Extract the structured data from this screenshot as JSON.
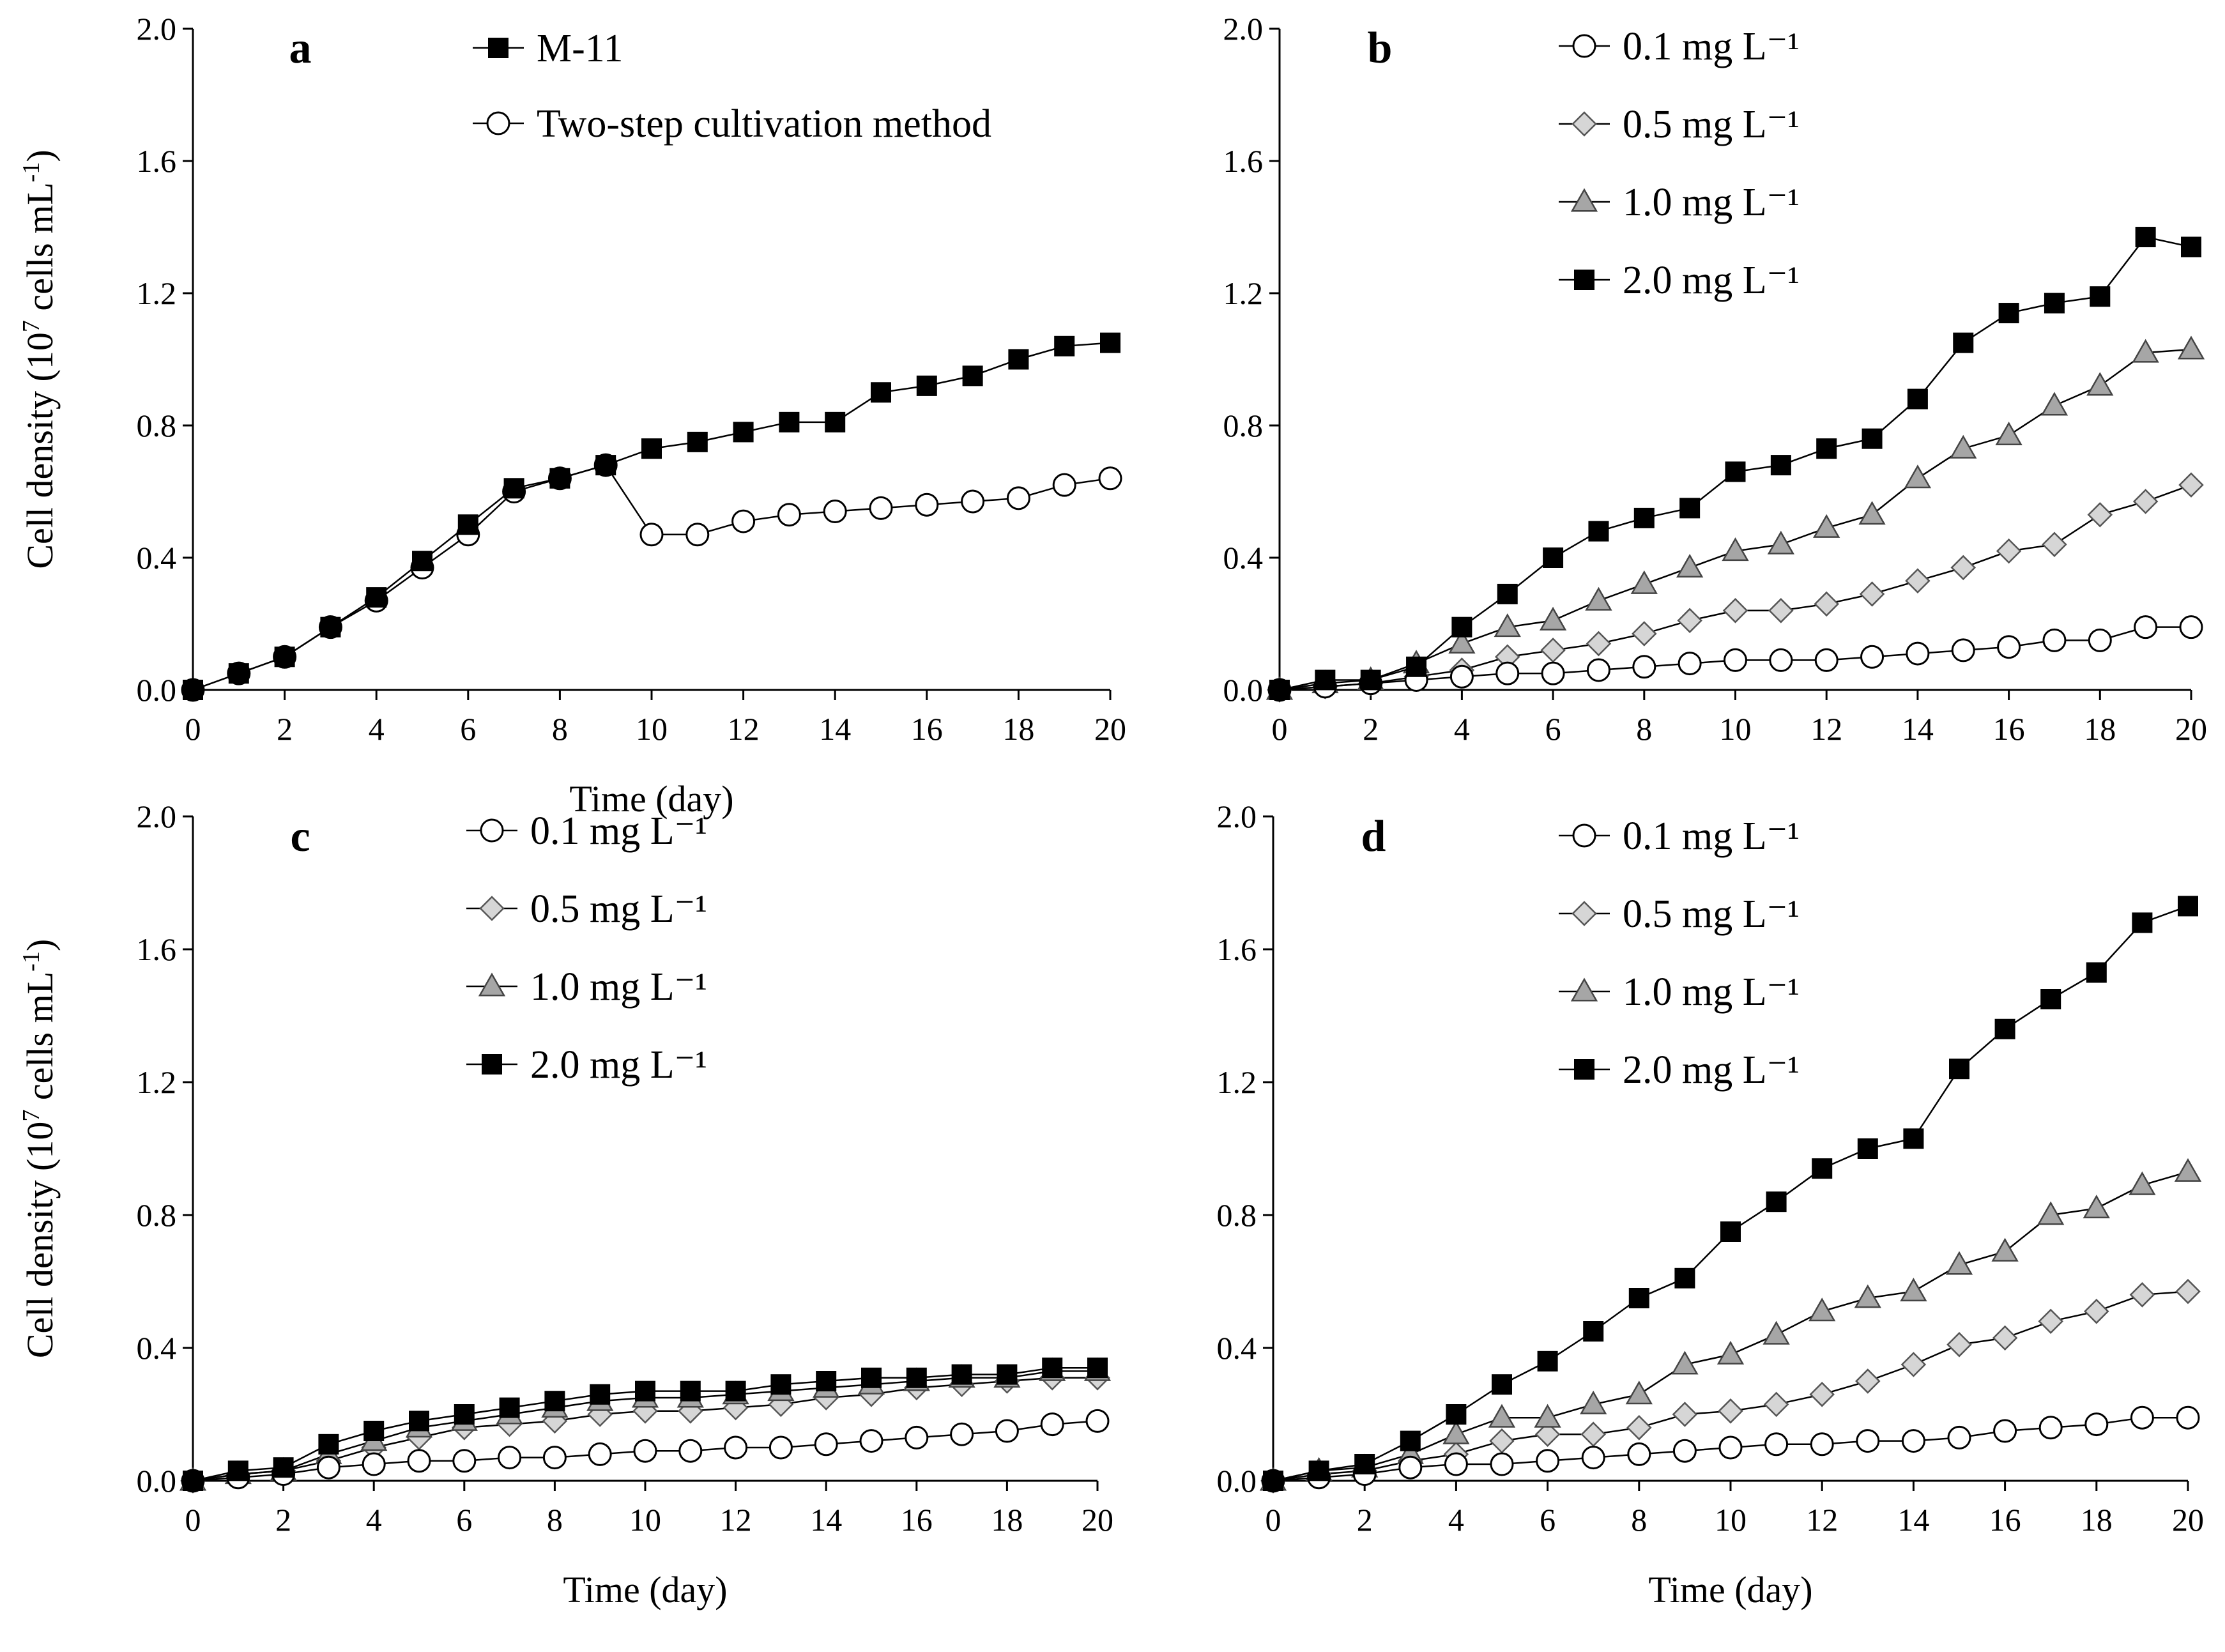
{
  "chart_data": [
    {
      "panel": "a",
      "type": "line",
      "xlabel": "Time (day)",
      "ylabel": "Cell density (10^7 cells mL^-1)",
      "xlim": [
        0,
        20
      ],
      "ylim": [
        0,
        2.0
      ],
      "xticks": [
        "0",
        "2",
        "4",
        "6",
        "8",
        "10",
        "12",
        "14",
        "16",
        "18",
        "20"
      ],
      "yticks": [
        "0.0",
        "0.4",
        "0.8",
        "1.2",
        "1.6",
        "2.0"
      ],
      "x": [
        0,
        1,
        2,
        3,
        4,
        5,
        6,
        7,
        8,
        9,
        10,
        11,
        12,
        13,
        14,
        15,
        16,
        17,
        18,
        19,
        20
      ],
      "series": [
        {
          "name": "M-11",
          "marker": "square-filled",
          "values": [
            0.0,
            0.05,
            0.1,
            0.19,
            0.28,
            0.39,
            0.5,
            0.61,
            0.64,
            0.68,
            0.73,
            0.75,
            0.78,
            0.81,
            0.81,
            0.9,
            0.92,
            0.95,
            1.0,
            1.04,
            1.05
          ]
        },
        {
          "name": "Two-step cultivation method",
          "marker": "circle-open",
          "values": [
            0.0,
            0.05,
            0.1,
            0.19,
            0.27,
            0.37,
            0.47,
            0.6,
            0.64,
            0.68,
            0.47,
            0.47,
            0.51,
            0.53,
            0.54,
            0.55,
            0.56,
            0.57,
            0.58,
            0.62,
            0.64
          ]
        }
      ]
    },
    {
      "panel": "b",
      "type": "line",
      "xlabel": "",
      "ylabel": "",
      "xlim": [
        0,
        20
      ],
      "ylim": [
        0,
        2.0
      ],
      "xticks": [
        "0",
        "2",
        "4",
        "6",
        "8",
        "10",
        "12",
        "14",
        "16",
        "18",
        "20"
      ],
      "yticks": [
        "0.0",
        "0.4",
        "0.8",
        "1.2",
        "1.6",
        "2.0"
      ],
      "x": [
        0,
        1,
        2,
        3,
        4,
        5,
        6,
        7,
        8,
        9,
        10,
        11,
        12,
        13,
        14,
        15,
        16,
        17,
        18,
        19,
        20
      ],
      "series": [
        {
          "name": "0.1 mg L⁻¹",
          "marker": "circle-open",
          "values": [
            0.0,
            0.01,
            0.02,
            0.03,
            0.04,
            0.05,
            0.05,
            0.06,
            0.07,
            0.08,
            0.09,
            0.09,
            0.09,
            0.1,
            0.11,
            0.12,
            0.13,
            0.15,
            0.15,
            0.19,
            0.19
          ]
        },
        {
          "name": "0.5 mg L⁻¹",
          "marker": "diamond-light",
          "values": [
            0.0,
            0.01,
            0.02,
            0.04,
            0.06,
            0.1,
            0.12,
            0.14,
            0.17,
            0.21,
            0.24,
            0.24,
            0.26,
            0.29,
            0.33,
            0.37,
            0.42,
            0.44,
            0.53,
            0.57,
            0.62
          ]
        },
        {
          "name": "1.0 mg L⁻¹",
          "marker": "triangle-gray",
          "values": [
            0.0,
            0.02,
            0.03,
            0.08,
            0.14,
            0.19,
            0.21,
            0.27,
            0.32,
            0.37,
            0.42,
            0.44,
            0.49,
            0.53,
            0.64,
            0.73,
            0.77,
            0.86,
            0.92,
            1.02,
            1.03
          ]
        },
        {
          "name": "2.0 mg L⁻¹",
          "marker": "square-filled",
          "values": [
            0.0,
            0.03,
            0.03,
            0.07,
            0.19,
            0.29,
            0.4,
            0.48,
            0.52,
            0.55,
            0.66,
            0.68,
            0.73,
            0.76,
            0.88,
            1.05,
            1.14,
            1.17,
            1.19,
            1.37,
            1.34
          ]
        }
      ]
    },
    {
      "panel": "c",
      "type": "line",
      "xlabel": "Time (day)",
      "ylabel": "Cell density (10^7 cells mL^-1)",
      "xlim": [
        0,
        20
      ],
      "ylim": [
        0,
        2.0
      ],
      "xticks": [
        "0",
        "2",
        "4",
        "6",
        "8",
        "10",
        "12",
        "14",
        "16",
        "18",
        "20"
      ],
      "yticks": [
        "0.0",
        "0.4",
        "0.8",
        "1.2",
        "1.6",
        "2.0"
      ],
      "x": [
        0,
        1,
        2,
        3,
        4,
        5,
        6,
        7,
        8,
        9,
        10,
        11,
        12,
        13,
        14,
        15,
        16,
        17,
        18,
        19,
        20
      ],
      "series": [
        {
          "name": "0.1 mg L⁻¹",
          "marker": "circle-open",
          "values": [
            0.0,
            0.01,
            0.02,
            0.04,
            0.05,
            0.06,
            0.06,
            0.07,
            0.07,
            0.08,
            0.09,
            0.09,
            0.1,
            0.1,
            0.11,
            0.12,
            0.13,
            0.14,
            0.15,
            0.17,
            0.18
          ]
        },
        {
          "name": "0.5 mg L⁻¹",
          "marker": "diamond-light",
          "values": [
            0.0,
            0.02,
            0.03,
            0.06,
            0.1,
            0.13,
            0.16,
            0.17,
            0.18,
            0.2,
            0.21,
            0.21,
            0.22,
            0.23,
            0.25,
            0.26,
            0.28,
            0.29,
            0.3,
            0.31,
            0.31
          ]
        },
        {
          "name": "1.0 mg L⁻¹",
          "marker": "triangle-gray",
          "values": [
            0.0,
            0.02,
            0.03,
            0.08,
            0.12,
            0.16,
            0.18,
            0.2,
            0.22,
            0.24,
            0.25,
            0.25,
            0.26,
            0.27,
            0.28,
            0.29,
            0.3,
            0.31,
            0.31,
            0.33,
            0.33
          ]
        },
        {
          "name": "2.0 mg L⁻¹",
          "marker": "square-filled",
          "values": [
            0.0,
            0.03,
            0.04,
            0.11,
            0.15,
            0.18,
            0.2,
            0.22,
            0.24,
            0.26,
            0.27,
            0.27,
            0.27,
            0.29,
            0.3,
            0.31,
            0.31,
            0.32,
            0.32,
            0.34,
            0.34
          ]
        }
      ]
    },
    {
      "panel": "d",
      "type": "line",
      "xlabel": "Time (day)",
      "ylabel": "",
      "xlim": [
        0,
        20
      ],
      "ylim": [
        0,
        2.0
      ],
      "xticks": [
        "0",
        "2",
        "4",
        "6",
        "8",
        "10",
        "12",
        "14",
        "16",
        "18",
        "20"
      ],
      "yticks": [
        "0.0",
        "0.4",
        "0.8",
        "1.2",
        "1.6",
        "2.0"
      ],
      "x": [
        0,
        1,
        2,
        3,
        4,
        5,
        6,
        7,
        8,
        9,
        10,
        11,
        12,
        13,
        14,
        15,
        16,
        17,
        18,
        19,
        20
      ],
      "series": [
        {
          "name": "0.1 mg L⁻¹",
          "marker": "circle-open",
          "values": [
            0.0,
            0.01,
            0.02,
            0.04,
            0.05,
            0.05,
            0.06,
            0.07,
            0.08,
            0.09,
            0.1,
            0.11,
            0.11,
            0.12,
            0.12,
            0.13,
            0.15,
            0.16,
            0.17,
            0.19,
            0.19
          ]
        },
        {
          "name": "0.5 mg L⁻¹",
          "marker": "diamond-light",
          "values": [
            0.0,
            0.02,
            0.03,
            0.06,
            0.08,
            0.12,
            0.14,
            0.14,
            0.16,
            0.2,
            0.21,
            0.23,
            0.26,
            0.3,
            0.35,
            0.41,
            0.43,
            0.48,
            0.51,
            0.56,
            0.57
          ]
        },
        {
          "name": "1.0 mg L⁻¹",
          "marker": "triangle-gray",
          "values": [
            0.0,
            0.03,
            0.04,
            0.08,
            0.14,
            0.19,
            0.19,
            0.23,
            0.26,
            0.35,
            0.38,
            0.44,
            0.51,
            0.55,
            0.57,
            0.65,
            0.69,
            0.8,
            0.82,
            0.89,
            0.93
          ]
        },
        {
          "name": "2.0 mg L⁻¹",
          "marker": "square-filled",
          "values": [
            0.0,
            0.03,
            0.05,
            0.12,
            0.2,
            0.29,
            0.36,
            0.45,
            0.55,
            0.61,
            0.75,
            0.84,
            0.94,
            1.0,
            1.03,
            1.24,
            1.36,
            1.45,
            1.53,
            1.68,
            1.73
          ]
        }
      ]
    }
  ]
}
